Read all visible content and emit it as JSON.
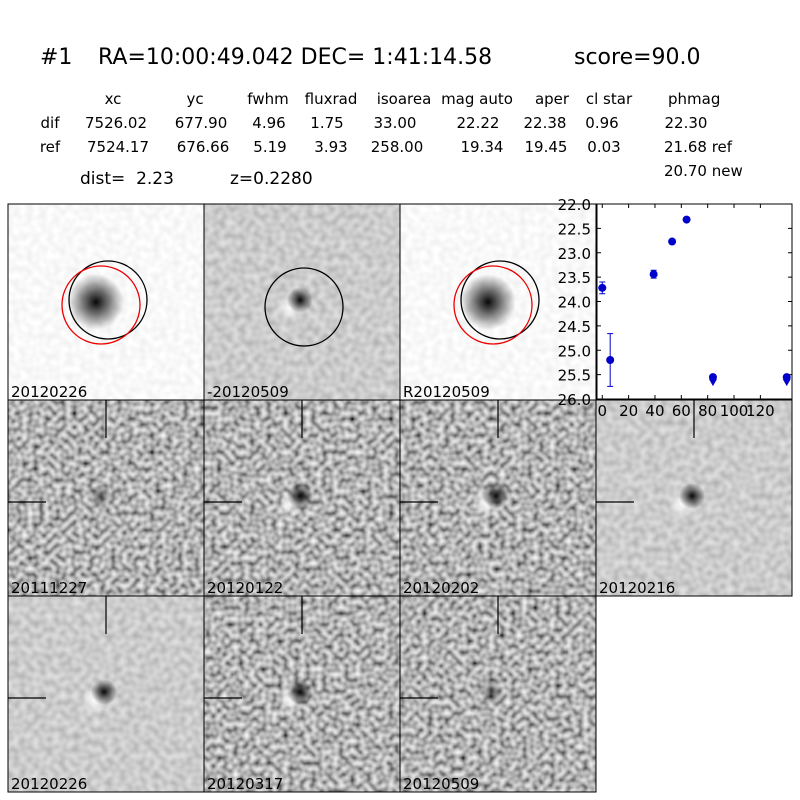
{
  "header": {
    "id": "#1",
    "coords": "RA=10:00:49.042 DEC= 1:41:14.58",
    "score": "score=90.0"
  },
  "table": {
    "columns": [
      "xc",
      "yc",
      "fwhm",
      "fluxrad",
      "isoarea",
      "mag auto",
      "aper",
      "cl star",
      "phmag"
    ],
    "rows": [
      [
        "dif",
        "7526.02",
        "677.90",
        "4.96",
        "1.75",
        "33.00",
        "22.22",
        "22.38",
        "0.96",
        "22.30"
      ],
      [
        "ref",
        "7524.17",
        "676.66",
        "5.19",
        "3.93",
        "258.00",
        "19.34",
        "19.45",
        "0.03",
        "21.68 ref"
      ]
    ],
    "extra": "20.70 new"
  },
  "info": {
    "dist": "dist=  2.23",
    "z": "z=0.2280"
  },
  "panels": [
    {
      "label": "20120226",
      "color": "#000000"
    },
    {
      "label": "-20120509",
      "color": "#000000"
    },
    {
      "label": "R20120509",
      "color": "#000000"
    },
    {
      "label": "20111227",
      "color": "#000000"
    },
    {
      "label": "20120122",
      "color": "#000000"
    },
    {
      "label": "20120202",
      "color": "#000000"
    },
    {
      "label": "20120216",
      "color": "#000000"
    },
    {
      "label": "20120226",
      "color": "#ff0000"
    },
    {
      "label": "20120317",
      "color": "#000000"
    },
    {
      "label": "20120509",
      "color": "#000000"
    }
  ],
  "chart_data": {
    "type": "scatter",
    "x": [
      0,
      6,
      39,
      53,
      64,
      84,
      140
    ],
    "values": [
      23.72,
      25.2,
      23.44,
      22.77,
      22.32,
      25.55,
      25.55
    ],
    "errors": [
      0.12,
      0.54,
      0.08,
      0.04,
      0.03,
      null,
      null
    ],
    "upper_limits": [
      false,
      false,
      false,
      false,
      false,
      true,
      true
    ],
    "color": "#0000cc",
    "xlim": [
      -4,
      144
    ],
    "ylim": [
      26,
      22
    ],
    "xticks": [
      0,
      20,
      40,
      60,
      80,
      100,
      120
    ],
    "yticks": [
      {
        "value": 22,
        "label": "22.0"
      },
      {
        "value": 22.5,
        "label": "22.5"
      },
      {
        "value": 23,
        "label": "23.0"
      },
      {
        "value": 23.5,
        "label": "23.5"
      },
      {
        "value": 24,
        "label": "24.0"
      },
      {
        "value": 24.5,
        "label": "24.5"
      },
      {
        "value": 25,
        "label": "25.0"
      },
      {
        "value": 25.5,
        "label": "25.5"
      },
      {
        "value": 26,
        "label": "26.0"
      }
    ]
  }
}
